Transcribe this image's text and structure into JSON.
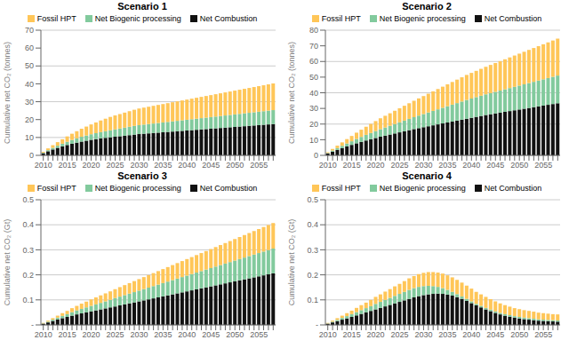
{
  "chart_data": [
    {
      "type": "bar",
      "title": "Scenario 1",
      "stacked": true,
      "grid": true,
      "legend": "top",
      "ylabel": "Cumulative net CO₂ (tonnes)",
      "categories": [
        "2010",
        null,
        null,
        null,
        null,
        "2015",
        null,
        null,
        null,
        null,
        "2020",
        null,
        null,
        null,
        null,
        "2025",
        null,
        null,
        null,
        null,
        "2030",
        null,
        null,
        null,
        null,
        "2035",
        null,
        null,
        null,
        null,
        "2040",
        null,
        null,
        null,
        null,
        "2045",
        null,
        null,
        null,
        null,
        "2050",
        null,
        null,
        null,
        null,
        "2055",
        null,
        null,
        null
      ],
      "series": [
        {
          "name": "Fossil HPT",
          "color": "#ffc658",
          "values": [
            0.5,
            1.0,
            1.5,
            2.0,
            2.5,
            3.0,
            3.5,
            4.0,
            4.5,
            5.0,
            5.5,
            6.0,
            6.5,
            7.0,
            7.5,
            7.8,
            8.1,
            8.4,
            8.7,
            9.0,
            9.3,
            9.5,
            9.7,
            9.9,
            10.1,
            10.3,
            10.5,
            10.7,
            10.9,
            11.1,
            11.3,
            11.5,
            11.7,
            11.9,
            12.1,
            12.3,
            12.5,
            12.7,
            12.9,
            13.1,
            13.3,
            13.5,
            13.7,
            13.9,
            14.1,
            14.3,
            14.5,
            14.7,
            14.9
          ]
        },
        {
          "name": "Net Biogenic processing",
          "color": "#82ca9d",
          "values": [
            0.3,
            0.6,
            0.9,
            1.2,
            1.5,
            1.8,
            2.1,
            2.4,
            2.7,
            2.9,
            3.1,
            3.3,
            3.5,
            3.7,
            3.9,
            4.1,
            4.3,
            4.5,
            4.7,
            4.9,
            5.0,
            5.1,
            5.2,
            5.3,
            5.4,
            5.5,
            5.6,
            5.7,
            5.8,
            5.9,
            6.0,
            6.1,
            6.2,
            6.3,
            6.4,
            6.5,
            6.6,
            6.7,
            6.8,
            6.9,
            7.0,
            7.1,
            7.2,
            7.3,
            7.4,
            7.5,
            7.6,
            7.7,
            7.8
          ]
        },
        {
          "name": "Net Combustion",
          "color": "#111111",
          "values": [
            1.2,
            2.3,
            3.3,
            4.2,
            5.0,
            5.8,
            6.5,
            7.1,
            7.7,
            8.2,
            8.7,
            9.1,
            9.5,
            9.8,
            10.1,
            10.4,
            10.7,
            11.0,
            11.3,
            11.6,
            11.9,
            12.1,
            12.3,
            12.5,
            12.7,
            12.9,
            13.1,
            13.3,
            13.5,
            13.7,
            13.9,
            14.1,
            14.3,
            14.5,
            14.7,
            14.9,
            15.1,
            15.3,
            15.5,
            15.7,
            15.9,
            16.1,
            16.3,
            16.5,
            16.7,
            16.9,
            17.1,
            17.3,
            17.5
          ]
        }
      ],
      "ylim": [
        0,
        70
      ],
      "yticks": [
        0,
        10,
        20,
        30,
        40,
        50,
        60,
        70
      ]
    },
    {
      "type": "bar",
      "title": "Scenario 2",
      "stacked": true,
      "grid": true,
      "legend": "top",
      "ylabel": "Cumulative net CO₂ (tonnes)",
      "categories": [
        "2010",
        null,
        null,
        null,
        null,
        "2015",
        null,
        null,
        null,
        null,
        "2020",
        null,
        null,
        null,
        null,
        "2025",
        null,
        null,
        null,
        null,
        "2030",
        null,
        null,
        null,
        null,
        "2035",
        null,
        null,
        null,
        null,
        "2040",
        null,
        null,
        null,
        null,
        "2045",
        null,
        null,
        null,
        null,
        "2050",
        null,
        null,
        null,
        null,
        "2055",
        null,
        null,
        null
      ],
      "series": [
        {
          "name": "Fossil HPT",
          "color": "#ffc658",
          "values": [
            0.5,
            1.0,
            1.6,
            2.2,
            2.8,
            3.4,
            4.0,
            4.6,
            5.2,
            5.8,
            6.4,
            7.0,
            7.5,
            8.0,
            8.5,
            9.0,
            9.5,
            10.0,
            10.5,
            11.0,
            11.5,
            12.0,
            12.5,
            13.0,
            13.5,
            14.0,
            14.5,
            15.0,
            15.5,
            16.0,
            16.4,
            16.8,
            17.2,
            17.6,
            18.0,
            18.4,
            18.8,
            19.2,
            19.6,
            20.0,
            20.4,
            20.8,
            21.2,
            21.6,
            22.0,
            22.4,
            22.8,
            23.2,
            23.6
          ]
        },
        {
          "name": "Net Biogenic processing",
          "color": "#82ca9d",
          "values": [
            0.3,
            0.7,
            1.1,
            1.5,
            1.9,
            2.3,
            2.8,
            3.2,
            3.6,
            4.0,
            4.4,
            4.8,
            5.2,
            5.6,
            6.0,
            6.4,
            6.8,
            7.2,
            7.6,
            8.0,
            8.4,
            8.8,
            9.2,
            9.6,
            10.0,
            10.4,
            10.8,
            11.2,
            11.6,
            12.0,
            12.3,
            12.6,
            12.9,
            13.2,
            13.5,
            13.8,
            14.1,
            14.4,
            14.7,
            15.0,
            15.3,
            15.6,
            15.9,
            16.2,
            16.5,
            16.8,
            17.1,
            17.4,
            17.7
          ]
        },
        {
          "name": "Net Combustion",
          "color": "#111111",
          "values": [
            1.2,
            2.4,
            3.5,
            4.6,
            5.7,
            6.7,
            7.7,
            8.6,
            9.5,
            10.3,
            11.1,
            11.9,
            12.6,
            13.3,
            14.0,
            14.7,
            15.4,
            16.1,
            16.8,
            17.4,
            18.0,
            18.6,
            19.2,
            19.8,
            20.4,
            21.0,
            21.6,
            22.2,
            22.8,
            23.4,
            24.0,
            24.6,
            25.2,
            25.8,
            26.3,
            26.8,
            27.3,
            27.8,
            28.3,
            28.8,
            29.3,
            29.8,
            30.3,
            30.8,
            31.3,
            31.8,
            32.3,
            32.8,
            33.3
          ]
        }
      ],
      "ylim": [
        0,
        80
      ],
      "yticks": [
        0,
        10,
        20,
        30,
        40,
        50,
        60,
        70,
        80
      ]
    },
    {
      "type": "bar",
      "title": "Scenario 3",
      "stacked": true,
      "grid": true,
      "legend": "top",
      "ylabel": "Cumulative net CO₂ (Gt)",
      "categories": [
        "2010",
        null,
        null,
        null,
        null,
        "2015",
        null,
        null,
        null,
        null,
        "2020",
        null,
        null,
        null,
        null,
        "2025",
        null,
        null,
        null,
        null,
        "2030",
        null,
        null,
        null,
        null,
        "2035",
        null,
        null,
        null,
        null,
        "2040",
        null,
        null,
        null,
        null,
        "2045",
        null,
        null,
        null,
        null,
        "2050",
        null,
        null,
        null,
        null,
        "2055",
        null,
        null,
        null
      ],
      "series": [
        {
          "name": "Fossil HPT",
          "color": "#ffc658",
          "values": [
            0.002,
            0.004,
            0.006,
            0.008,
            0.011,
            0.013,
            0.016,
            0.018,
            0.021,
            0.023,
            0.026,
            0.028,
            0.03,
            0.032,
            0.034,
            0.036,
            0.038,
            0.04,
            0.042,
            0.044,
            0.046,
            0.048,
            0.05,
            0.052,
            0.054,
            0.056,
            0.058,
            0.06,
            0.062,
            0.064,
            0.066,
            0.068,
            0.07,
            0.072,
            0.074,
            0.076,
            0.078,
            0.08,
            0.082,
            0.084,
            0.086,
            0.088,
            0.09,
            0.092,
            0.094,
            0.096,
            0.098,
            0.1,
            0.102
          ]
        },
        {
          "name": "Net Biogenic processing",
          "color": "#82ca9d",
          "values": [
            0.001,
            0.003,
            0.005,
            0.007,
            0.009,
            0.011,
            0.014,
            0.016,
            0.018,
            0.02,
            0.022,
            0.024,
            0.026,
            0.028,
            0.03,
            0.033,
            0.035,
            0.037,
            0.039,
            0.041,
            0.043,
            0.045,
            0.047,
            0.049,
            0.051,
            0.053,
            0.055,
            0.057,
            0.059,
            0.061,
            0.063,
            0.065,
            0.067,
            0.069,
            0.071,
            0.073,
            0.075,
            0.077,
            0.079,
            0.081,
            0.083,
            0.085,
            0.087,
            0.089,
            0.091,
            0.093,
            0.095,
            0.097,
            0.099
          ]
        },
        {
          "name": "Net Combustion",
          "color": "#111111",
          "values": [
            0.005,
            0.01,
            0.016,
            0.022,
            0.027,
            0.032,
            0.037,
            0.042,
            0.046,
            0.05,
            0.054,
            0.058,
            0.062,
            0.066,
            0.07,
            0.074,
            0.078,
            0.082,
            0.086,
            0.09,
            0.094,
            0.098,
            0.102,
            0.106,
            0.11,
            0.114,
            0.118,
            0.122,
            0.126,
            0.13,
            0.134,
            0.138,
            0.142,
            0.146,
            0.15,
            0.154,
            0.158,
            0.162,
            0.166,
            0.17,
            0.174,
            0.178,
            0.182,
            0.186,
            0.19,
            0.194,
            0.198,
            0.202,
            0.206
          ]
        }
      ],
      "ylim": [
        0,
        0.5
      ],
      "yticks": [
        {
          "value": 0,
          "label": "-"
        },
        0.1,
        0.2,
        0.3,
        0.4,
        0.5
      ]
    },
    {
      "type": "bar",
      "title": "Scenario 4",
      "stacked": true,
      "grid": true,
      "legend": "top",
      "ylabel": "Cumulative net CO₂ (Gt)",
      "categories": [
        "2010",
        null,
        null,
        null,
        null,
        "2015",
        null,
        null,
        null,
        null,
        "2020",
        null,
        null,
        null,
        null,
        "2025",
        null,
        null,
        null,
        null,
        "2030",
        null,
        null,
        null,
        null,
        "2035",
        null,
        null,
        null,
        null,
        "2040",
        null,
        null,
        null,
        null,
        "2045",
        null,
        null,
        null,
        null,
        "2050",
        null,
        null,
        null,
        null,
        "2055",
        null,
        null,
        null
      ],
      "series": [
        {
          "name": "Fossil HPT",
          "color": "#ffc658",
          "values": [
            0.002,
            0.004,
            0.007,
            0.009,
            0.012,
            0.014,
            0.017,
            0.02,
            0.022,
            0.025,
            0.028,
            0.03,
            0.033,
            0.035,
            0.038,
            0.04,
            0.043,
            0.046,
            0.048,
            0.051,
            0.053,
            0.055,
            0.056,
            0.057,
            0.058,
            0.058,
            0.058,
            0.057,
            0.055,
            0.053,
            0.051,
            0.048,
            0.046,
            0.044,
            0.042,
            0.04,
            0.038,
            0.036,
            0.034,
            0.032,
            0.031,
            0.03,
            0.029,
            0.028,
            0.027,
            0.026,
            0.025,
            0.024,
            0.024
          ]
        },
        {
          "name": "Net Biogenic processing",
          "color": "#82ca9d",
          "values": [
            0.001,
            0.003,
            0.005,
            0.007,
            0.009,
            0.011,
            0.013,
            0.015,
            0.017,
            0.019,
            0.022,
            0.024,
            0.026,
            0.028,
            0.03,
            0.032,
            0.034,
            0.036,
            0.037,
            0.037,
            0.036,
            0.034,
            0.031,
            0.027,
            0.023,
            0.019,
            0.015,
            0.012,
            0.01,
            0.008,
            0.007,
            0.006,
            0.006,
            0.006,
            0.006,
            0.006,
            0.006,
            0.006,
            0.006,
            0.006,
            0.006,
            0.006,
            0.006,
            0.006,
            0.005,
            0.005,
            0.005,
            0.005,
            0.005
          ]
        },
        {
          "name": "Net Combustion",
          "color": "#111111",
          "values": [
            0.005,
            0.01,
            0.015,
            0.021,
            0.026,
            0.032,
            0.038,
            0.044,
            0.05,
            0.056,
            0.062,
            0.068,
            0.074,
            0.08,
            0.086,
            0.092,
            0.098,
            0.104,
            0.11,
            0.115,
            0.119,
            0.122,
            0.124,
            0.125,
            0.124,
            0.121,
            0.117,
            0.111,
            0.104,
            0.096,
            0.087,
            0.078,
            0.07,
            0.062,
            0.055,
            0.048,
            0.042,
            0.037,
            0.033,
            0.029,
            0.026,
            0.023,
            0.021,
            0.019,
            0.017,
            0.016,
            0.015,
            0.014,
            0.013
          ]
        }
      ],
      "ylim": [
        0,
        0.5
      ],
      "yticks": [
        {
          "value": 0,
          "label": "-"
        },
        0.1,
        0.2,
        0.3,
        0.4,
        0.5
      ]
    }
  ]
}
